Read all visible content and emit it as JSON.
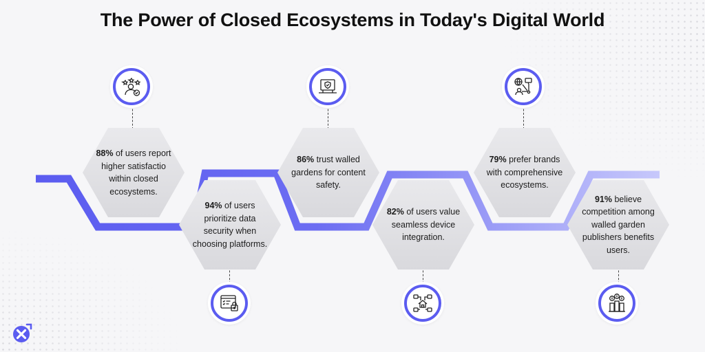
{
  "title": "The Power of Closed Ecosystems in Today's Digital World",
  "accent_color": "#5b5cf0",
  "steps": [
    {
      "stat": "88%",
      "text": " of users report higher satisfactio within closed ecosystems.",
      "icon": "user-stars-check-icon"
    },
    {
      "stat": "94%",
      "text": " of users prioritize data security when choosing platforms.",
      "icon": "browser-lock-icon"
    },
    {
      "stat": "86%",
      "text": " trust walled gardens for content safety.",
      "icon": "laptop-shield-icon"
    },
    {
      "stat": "82%",
      "text": " of users value seamless device integration.",
      "icon": "home-network-icon"
    },
    {
      "stat": "79%",
      "text": " prefer brands with comprehensive ecosystems.",
      "icon": "global-connect-icon"
    },
    {
      "stat": "91%",
      "text": "  believe competition among walled garden publishers benefits users.",
      "icon": "coins-bars-icon"
    }
  ],
  "logo_icon": "brand-x-logo-icon"
}
